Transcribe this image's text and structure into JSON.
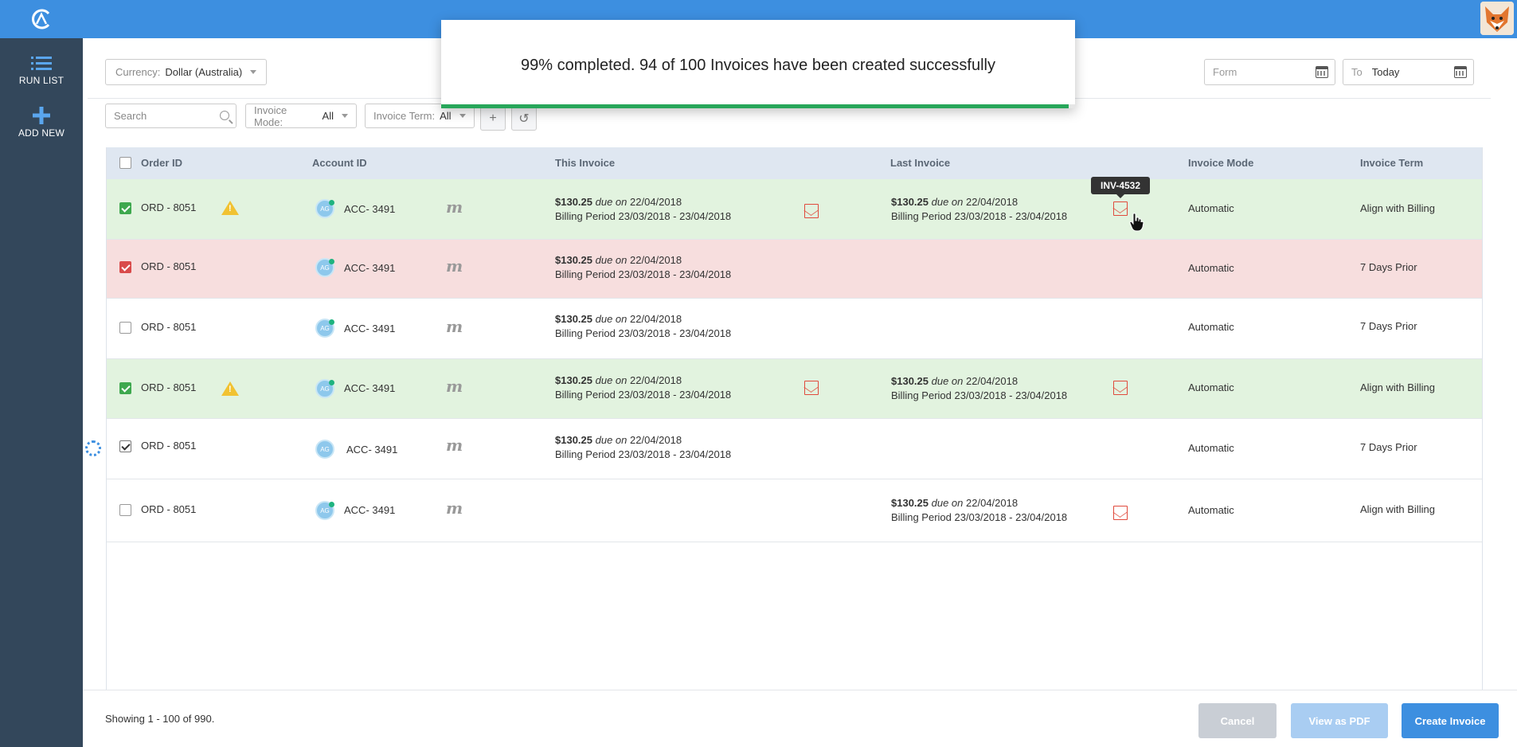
{
  "sidebar": {
    "items": [
      {
        "label": "RUN LIST",
        "icon": "list-icon"
      },
      {
        "label": "ADD NEW",
        "icon": "plus-icon"
      }
    ]
  },
  "filters": {
    "currency_label": "Currency:",
    "currency_value": "Dollar (Australia)",
    "from_placeholder": "Form",
    "to_label": "To",
    "to_value": "Today",
    "search_placeholder": "Search",
    "invoice_mode_label": "Invoice Mode:",
    "invoice_mode_value": "All",
    "invoice_term_label": "Invoice Term:",
    "invoice_term_value": "All"
  },
  "table": {
    "headers": [
      "Order ID",
      "Account ID",
      "This Invoice",
      "Last Invoice",
      "Invoice Mode",
      "Invoice Term"
    ],
    "due_word": "due on",
    "rows": [
      {
        "state": "green",
        "checkbox": "g",
        "order": "ORD - 8051",
        "warning": true,
        "account": "ACC- 3491",
        "avatar": "AG",
        "this_amount": "$130.25",
        "this_due": "22/04/2018",
        "this_period": "Billing Period 23/03/2018 - 23/04/2018",
        "this_pdf": true,
        "last_amount": "$130.25",
        "last_due": "22/04/2018",
        "last_period": "Billing Period 23/03/2018 - 23/04/2018",
        "last_pdf": true,
        "mode": "Automatic",
        "term": "Align with Billing"
      },
      {
        "state": "red",
        "checkbox": "r",
        "order": "ORD - 8051",
        "warning": false,
        "account": "ACC- 3491",
        "avatar": "AG",
        "this_amount": "$130.25",
        "this_due": "22/04/2018",
        "this_period": "Billing Period 23/03/2018 - 23/04/2018",
        "this_pdf": false,
        "last_amount": "",
        "last_due": "",
        "last_period": "",
        "last_pdf": false,
        "mode": "Automatic",
        "term": "7 Days Prior"
      },
      {
        "state": "plain",
        "checkbox": "",
        "order": "ORD - 8051",
        "warning": false,
        "account": "ACC- 3491",
        "avatar": "AG",
        "this_amount": "$130.25",
        "this_due": "22/04/2018",
        "this_period": "Billing Period 23/03/2018 - 23/04/2018",
        "this_pdf": false,
        "last_amount": "",
        "last_due": "",
        "last_period": "",
        "last_pdf": false,
        "mode": "Automatic",
        "term": "7 Days Prior"
      },
      {
        "state": "green",
        "checkbox": "g",
        "order": "ORD - 8051",
        "warning": true,
        "account": "ACC- 3491",
        "avatar": "AG",
        "this_amount": "$130.25",
        "this_due": "22/04/2018",
        "this_period": "Billing Period 23/03/2018 - 23/04/2018",
        "this_pdf": true,
        "last_amount": "$130.25",
        "last_due": "22/04/2018",
        "last_period": "Billing Period 23/03/2018 - 23/04/2018",
        "last_pdf": true,
        "mode": "Automatic",
        "term": "Align with Billing"
      },
      {
        "state": "plain",
        "checkbox": "k",
        "order": "ORD - 8051",
        "warning": false,
        "account": "ACC- 3491",
        "avatar": "AG",
        "this_amount": "$130.25",
        "this_due": "22/04/2018",
        "this_period": "Billing Period 23/03/2018 - 23/04/2018",
        "this_pdf": false,
        "last_amount": "",
        "last_due": "",
        "last_period": "",
        "last_pdf": false,
        "mode": "Automatic",
        "term": "7 Days Prior"
      },
      {
        "state": "plain",
        "checkbox": "",
        "order": "ORD - 8051",
        "warning": false,
        "account": "ACC- 3491",
        "avatar": "AG",
        "this_amount": "",
        "this_due": "",
        "this_period": "",
        "this_pdf": false,
        "last_amount": "$130.25",
        "last_due": "22/04/2018",
        "last_period": "Billing Period 23/03/2018 - 23/04/2018",
        "last_pdf": true,
        "mode": "Automatic",
        "term": "Align with Billing"
      }
    ],
    "tooltip": "INV-4532"
  },
  "footer": {
    "showing": "Showing 1 - 100 of 990.",
    "cancel": "Cancel",
    "view_pdf": "View as PDF",
    "create": "Create Invoice"
  },
  "modal": {
    "message": "99% completed. 94 of 100 Invoices have been created successfully",
    "progress": 0.99
  },
  "colors": {
    "primary": "#3d8fe0",
    "sidebar": "#33475b",
    "success": "#27a65a",
    "row_green": "#e2f3df",
    "row_red": "#f7dede",
    "pdf_red": "#e04a3c"
  }
}
